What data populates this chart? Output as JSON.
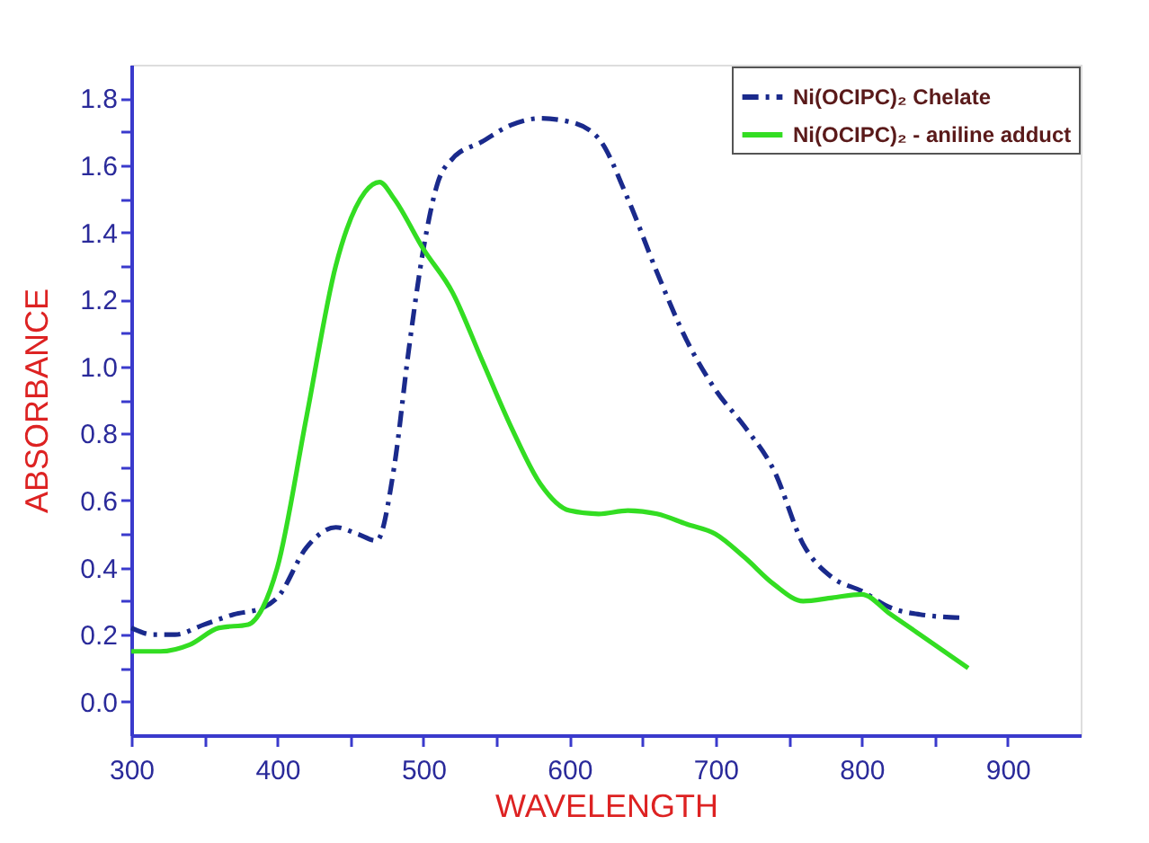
{
  "chart_data": {
    "type": "line",
    "xlabel": "WAVELENGTH",
    "ylabel": "ABSORBANCE",
    "xlim": [
      300,
      950
    ],
    "ylim": [
      -0.1,
      1.9
    ],
    "xticks": [
      300,
      {
        "value": 350,
        "label": null
      },
      400,
      {
        "value": 450,
        "label": null
      },
      500,
      {
        "value": 550,
        "label": null
      },
      600,
      {
        "value": 650,
        "label": null
      },
      700,
      {
        "value": 750,
        "label": null
      },
      800,
      {
        "value": 850,
        "label": null
      },
      900
    ],
    "yticks": [
      "0.0",
      {
        "value": 0.1,
        "label": null
      },
      0.2,
      {
        "value": 0.3,
        "label": null
      },
      0.4,
      {
        "value": 0.5,
        "label": null
      },
      0.6,
      {
        "value": 0.7,
        "label": null
      },
      0.8,
      {
        "value": 0.9,
        "label": null
      },
      {
        "value": 1.0,
        "label": "1.0"
      },
      {
        "value": 1.1,
        "label": null
      },
      1.2,
      {
        "value": 1.3,
        "label": null
      },
      1.4,
      {
        "value": 1.5,
        "label": null
      },
      1.6,
      {
        "value": 1.7,
        "label": null
      },
      1.8
    ],
    "grid": false,
    "legend": "top right",
    "marker": "none",
    "series": [
      {
        "name": "Ni(OCIPC)₂ Chelate",
        "color": "#1a2a8c",
        "line_style": "dashed",
        "x": [
          300,
          315,
          330,
          350,
          370,
          390,
          400,
          420,
          440,
          455,
          468,
          480,
          490,
          500,
          510,
          520,
          540,
          560,
          580,
          600,
          620,
          640,
          660,
          680,
          700,
          720,
          740,
          760,
          780,
          800,
          820,
          840,
          870
        ],
        "values": [
          0.22,
          0.2,
          0.2,
          0.23,
          0.26,
          0.28,
          0.31,
          0.46,
          0.52,
          0.5,
          0.48,
          0.7,
          1.05,
          1.35,
          1.55,
          1.62,
          1.67,
          1.72,
          1.74,
          1.73,
          1.68,
          1.5,
          1.28,
          1.08,
          0.93,
          0.82,
          0.69,
          0.47,
          0.37,
          0.33,
          0.28,
          0.26,
          0.25
        ]
      },
      {
        "name": "Ni(OCIPC)₂ - aniline adduct",
        "color": "#33dd22",
        "line_style": "solid",
        "x": [
          300,
          320,
          340,
          360,
          380,
          390,
          400,
          420,
          440,
          460,
          470,
          480,
          500,
          520,
          540,
          560,
          580,
          600,
          620,
          640,
          660,
          680,
          700,
          720,
          740,
          760,
          780,
          800,
          820,
          840,
          873
        ],
        "values": [
          0.15,
          0.15,
          0.17,
          0.22,
          0.23,
          0.28,
          0.4,
          0.85,
          1.3,
          1.52,
          1.55,
          1.5,
          1.35,
          1.22,
          1.02,
          0.82,
          0.65,
          0.57,
          0.56,
          0.57,
          0.56,
          0.53,
          0.5,
          0.43,
          0.35,
          0.3,
          0.31,
          0.32,
          0.26,
          0.2,
          0.1
        ]
      }
    ]
  }
}
